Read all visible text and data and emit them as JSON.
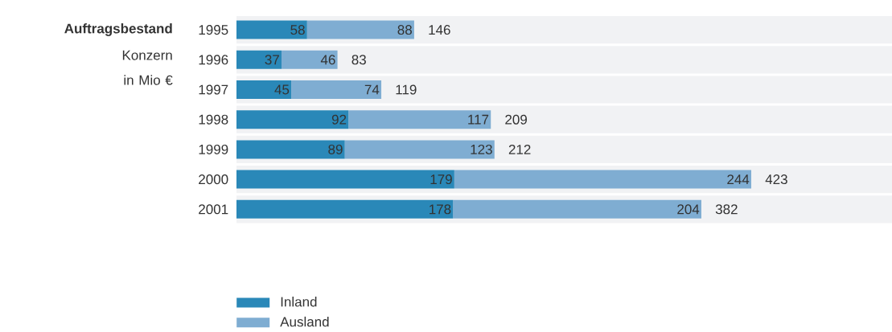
{
  "chart_data": {
    "type": "bar",
    "orientation": "horizontal",
    "stacked": true,
    "title": "Auftragsbestand",
    "subtitle": "Konzern in Mio €",
    "categories": [
      "1995",
      "1996",
      "1997",
      "1998",
      "1999",
      "2000",
      "2001"
    ],
    "series": [
      {
        "name": "Inland",
        "color": "#2a88b8",
        "values": [
          58,
          37,
          45,
          92,
          89,
          179,
          178
        ]
      },
      {
        "name": "Ausland",
        "color": "#7fadd2",
        "values": [
          88,
          46,
          74,
          117,
          123,
          244,
          204
        ]
      }
    ],
    "totals": [
      "146",
      "83",
      "119",
      "209",
      "212",
      "423",
      "382"
    ],
    "data_labels": true,
    "legend": "bottom left"
  }
}
